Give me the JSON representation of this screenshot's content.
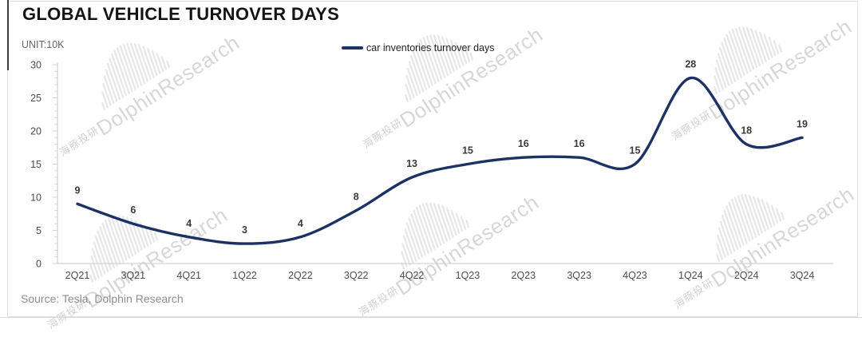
{
  "title": "GLOBAL VEHICLE TURNOVER DAYS",
  "unit_label": "UNIT:10K",
  "legend": {
    "label": "car inventories turnover days",
    "line_color": "#1d3264"
  },
  "source": "Source: Tesla, Dolphin Research",
  "watermark": {
    "cjk": "海豚投研",
    "en": "DolphinResearch"
  },
  "colors": {
    "line": "#1d3264",
    "axis": "#d2d2d2",
    "axis_label": "#4d4d4d",
    "data_label": "#3b3b3b"
  },
  "chart_data": {
    "type": "line",
    "title": "GLOBAL VEHICLE TURNOVER DAYS",
    "unit": "10K",
    "categories": [
      "2Q21",
      "3Q21",
      "4Q21",
      "1Q22",
      "2Q22",
      "3Q22",
      "4Q22",
      "1Q23",
      "2Q23",
      "3Q23",
      "4Q23",
      "1Q24",
      "2Q24",
      "3Q24"
    ],
    "series": [
      {
        "name": "car inventories turnover days",
        "values": [
          9,
          6,
          4,
          3,
          4,
          8,
          13,
          15,
          16,
          16,
          15,
          28,
          18,
          19
        ],
        "color": "#1d3264"
      }
    ],
    "ylim": [
      0,
      30
    ],
    "y_ticks": [
      0,
      5,
      10,
      15,
      20,
      25,
      30
    ],
    "y_minor_tick_step": 1,
    "grid": false,
    "legend_position": "top-center",
    "data_labels": true
  }
}
